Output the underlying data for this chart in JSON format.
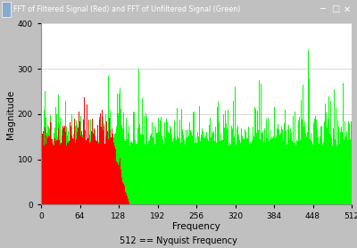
{
  "title": "FFT of Filtered Signal (Red) and FFT of Unfiltered Signal (Green)",
  "xlabel": "Frequency",
  "ylabel": "Magnitude",
  "subtitle": "512 == Nyquist Frequency",
  "xlim": [
    0,
    512
  ],
  "ylim": [
    0,
    400
  ],
  "xticks": [
    0,
    64,
    128,
    192,
    256,
    320,
    384,
    448,
    512
  ],
  "yticks": [
    0,
    100,
    200,
    300,
    400
  ],
  "n_points": 512,
  "green_color": "#00FF00",
  "red_color": "#FF0000",
  "bg_color": "#C0C0C0",
  "plot_bg_color": "#FFFFFF",
  "title_bar_color": "#3A5B8C",
  "seed": 77,
  "green_base": 130,
  "green_noise_scale": 40,
  "green_spike_prob": 0.08,
  "green_spike_extra": 120,
  "red_base": 130,
  "red_noise_scale": 40,
  "red_cutoff": 128,
  "red_rolloff_start": 115,
  "red_rolloff_end": 145
}
